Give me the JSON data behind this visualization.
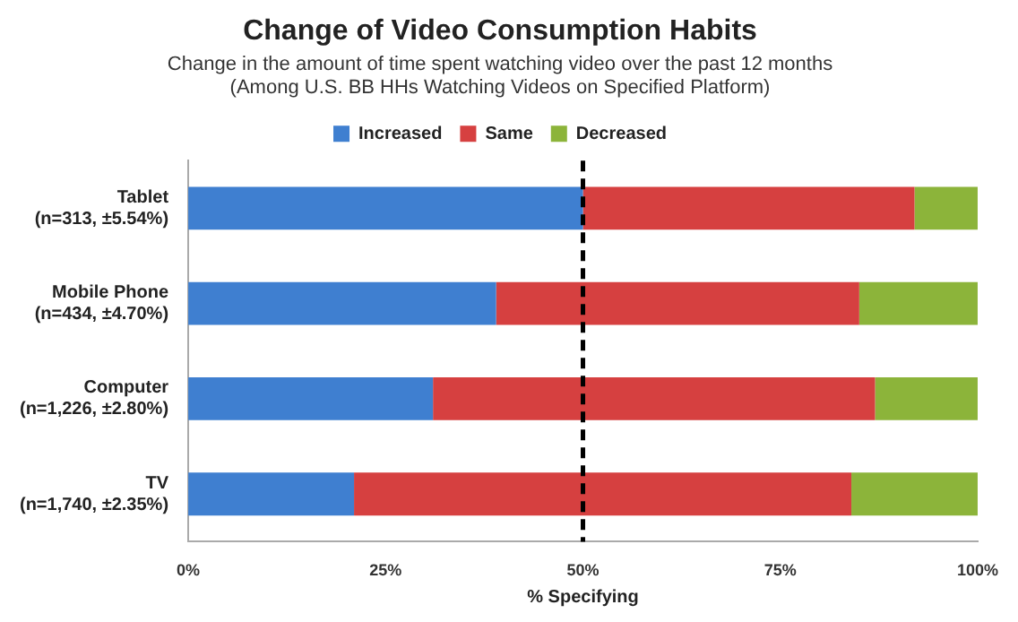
{
  "chart_data": {
    "type": "bar",
    "orientation": "horizontal",
    "stacked": true,
    "title": "Change of Video Consumption Habits",
    "subtitle": "Change in the amount of time spent watching video over the past 12 months\n(Among U.S. BB HHs Watching Videos on Specified Platform)",
    "xlabel": "% Specifying",
    "categories": [
      "Tablet\n(n=313, ±5.54%)",
      "Mobile Phone\n(n=434, ±4.70%)",
      "Computer\n(n=1,226, ±2.80%)",
      "TV\n(n=1,740, ±2.35%)"
    ],
    "series": [
      {
        "name": "Increased",
        "color": "#3f7fd0",
        "values": [
          50,
          39,
          31,
          21
        ]
      },
      {
        "name": "Same",
        "color": "#d64040",
        "values": [
          42,
          46,
          56,
          63
        ]
      },
      {
        "name": "Decreased",
        "color": "#8cb43a",
        "values": [
          8,
          15,
          13,
          16
        ]
      }
    ],
    "xlim": [
      0,
      100
    ],
    "xticks": [
      {
        "value": 0,
        "label": "0%"
      },
      {
        "value": 25,
        "label": "25%"
      },
      {
        "value": 50,
        "label": "50%"
      },
      {
        "value": 75,
        "label": "75%"
      },
      {
        "value": 100,
        "label": "100%"
      }
    ],
    "ref_lines": [
      {
        "axis": "x",
        "value": 50,
        "line_style": "dashed",
        "color": "#000000"
      }
    ],
    "grid": false,
    "legend": "top"
  }
}
